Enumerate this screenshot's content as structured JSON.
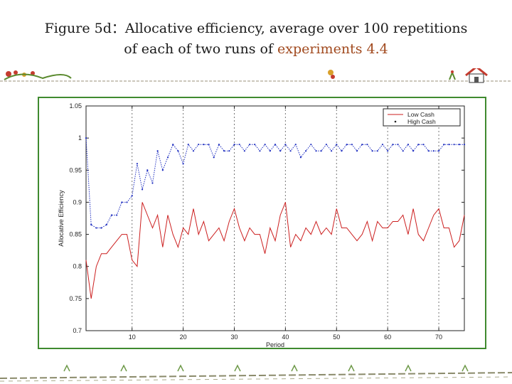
{
  "slide": {
    "title_line1": "Figure 5d：Allocative efficiency, average over 100 repetitions",
    "title_line2_prefix": "of each of two runs of ",
    "title_line2_accent": "experiments 4.4",
    "accent_color": "#a14a1f",
    "frame_color": "#3f8a2f"
  },
  "chart_data": {
    "type": "line",
    "xlabel": "Period",
    "ylabel": "Allocative Efficiency",
    "xlim": [
      1,
      75
    ],
    "ylim": [
      0.7,
      1.05
    ],
    "xticks": [
      10,
      20,
      30,
      40,
      50,
      60,
      70
    ],
    "yticks": [
      0.7,
      0.75,
      0.8,
      0.85,
      0.9,
      0.95,
      1,
      1.05
    ],
    "grid": "x-only (dashed)",
    "legend_position": "top-right",
    "series": [
      {
        "name": "Low Cash",
        "color": "#cc1f1f",
        "style": "solid line",
        "x": [
          1,
          2,
          3,
          4,
          5,
          6,
          7,
          8,
          9,
          10,
          11,
          12,
          13,
          14,
          15,
          16,
          17,
          18,
          19,
          20,
          21,
          22,
          23,
          24,
          25,
          26,
          27,
          28,
          29,
          30,
          31,
          32,
          33,
          34,
          35,
          36,
          37,
          38,
          39,
          40,
          41,
          42,
          43,
          44,
          45,
          46,
          47,
          48,
          49,
          50,
          51,
          52,
          53,
          54,
          55,
          56,
          57,
          58,
          59,
          60,
          61,
          62,
          63,
          64,
          65,
          66,
          67,
          68,
          69,
          70,
          71,
          72,
          73,
          74,
          75
        ],
        "values": [
          0.81,
          0.75,
          0.8,
          0.82,
          0.82,
          0.83,
          0.84,
          0.85,
          0.85,
          0.81,
          0.8,
          0.9,
          0.88,
          0.86,
          0.88,
          0.83,
          0.88,
          0.85,
          0.83,
          0.86,
          0.85,
          0.89,
          0.85,
          0.87,
          0.84,
          0.85,
          0.86,
          0.84,
          0.87,
          0.89,
          0.86,
          0.84,
          0.86,
          0.85,
          0.85,
          0.82,
          0.86,
          0.84,
          0.88,
          0.9,
          0.83,
          0.85,
          0.84,
          0.86,
          0.85,
          0.87,
          0.85,
          0.86,
          0.85,
          0.89,
          0.86,
          0.86,
          0.85,
          0.84,
          0.85,
          0.87,
          0.84,
          0.87,
          0.86,
          0.86,
          0.87,
          0.87,
          0.88,
          0.85,
          0.89,
          0.85,
          0.84,
          0.86,
          0.88,
          0.89,
          0.86,
          0.86,
          0.83,
          0.84,
          0.88
        ]
      },
      {
        "name": "High Cash",
        "color": "#1f2fc0",
        "style": "dotted line with markers",
        "x": [
          1,
          2,
          3,
          4,
          5,
          6,
          7,
          8,
          9,
          10,
          11,
          12,
          13,
          14,
          15,
          16,
          17,
          18,
          19,
          20,
          21,
          22,
          23,
          24,
          25,
          26,
          27,
          28,
          29,
          30,
          31,
          32,
          33,
          34,
          35,
          36,
          37,
          38,
          39,
          40,
          41,
          42,
          43,
          44,
          45,
          46,
          47,
          48,
          49,
          50,
          51,
          52,
          53,
          54,
          55,
          56,
          57,
          58,
          59,
          60,
          61,
          62,
          63,
          64,
          65,
          66,
          67,
          68,
          69,
          70,
          71,
          72,
          73,
          74,
          75
        ],
        "values": [
          1.0,
          0.865,
          0.86,
          0.86,
          0.865,
          0.88,
          0.88,
          0.9,
          0.9,
          0.91,
          0.96,
          0.92,
          0.95,
          0.93,
          0.98,
          0.95,
          0.97,
          0.99,
          0.98,
          0.96,
          0.99,
          0.98,
          0.99,
          0.99,
          0.99,
          0.97,
          0.99,
          0.98,
          0.98,
          0.99,
          0.99,
          0.98,
          0.99,
          0.99,
          0.98,
          0.99,
          0.98,
          0.99,
          0.98,
          0.99,
          0.98,
          0.99,
          0.97,
          0.98,
          0.99,
          0.98,
          0.98,
          0.99,
          0.98,
          0.99,
          0.98,
          0.99,
          0.99,
          0.98,
          0.99,
          0.99,
          0.98,
          0.98,
          0.99,
          0.98,
          0.99,
          0.99,
          0.98,
          0.99,
          0.98,
          0.99,
          0.99,
          0.98,
          0.98,
          0.98,
          0.99,
          0.99,
          0.99,
          0.99,
          0.99
        ]
      }
    ]
  }
}
